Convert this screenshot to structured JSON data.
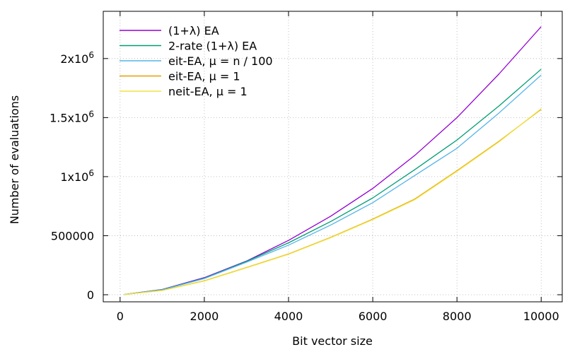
{
  "chart_data": {
    "type": "line",
    "xlabel": "Bit vector size",
    "ylabel": "Number of evaluations",
    "xlim": [
      -400,
      10500
    ],
    "ylim": [
      -60000,
      2400000
    ],
    "grid": true,
    "legend_position": "top-left",
    "x_ticks": [
      {
        "value": 0,
        "label": "0"
      },
      {
        "value": 2000,
        "label": "2000"
      },
      {
        "value": 4000,
        "label": "4000"
      },
      {
        "value": 6000,
        "label": "6000"
      },
      {
        "value": 8000,
        "label": "8000"
      },
      {
        "value": 10000,
        "label": "10000"
      }
    ],
    "y_ticks": [
      {
        "value": 0,
        "base": "0",
        "exp": ""
      },
      {
        "value": 500000,
        "base": "500000",
        "exp": ""
      },
      {
        "value": 1000000,
        "base": "1x10",
        "exp": "6"
      },
      {
        "value": 1500000,
        "base": "1.5x10",
        "exp": "6"
      },
      {
        "value": 2000000,
        "base": "2x10",
        "exp": "6"
      }
    ],
    "x": [
      100,
      1000,
      2000,
      3000,
      4000,
      5000,
      6000,
      7000,
      8000,
      9000,
      10000
    ],
    "series": [
      {
        "name": "(1+λ) EA",
        "color": "#9400d3",
        "values": [
          2000,
          45000,
          145000,
          285000,
          460000,
          665000,
          900000,
          1180000,
          1500000,
          1870000,
          2270000
        ]
      },
      {
        "name": "2-rate (1+λ) EA",
        "color": "#009e73",
        "values": [
          2000,
          43000,
          140000,
          282000,
          440000,
          620000,
          820000,
          1060000,
          1310000,
          1600000,
          1910000
        ]
      },
      {
        "name": "eit-EA, μ = n / 100",
        "color": "#56b4e9",
        "values": [
          2000,
          42000,
          137000,
          275000,
          420000,
          590000,
          780000,
          1010000,
          1240000,
          1540000,
          1860000
        ]
      },
      {
        "name": "eit-EA, μ = 1",
        "color": "#e69f00",
        "values": [
          2000,
          37000,
          118000,
          230000,
          345000,
          485000,
          640000,
          810000,
          1050000,
          1300000,
          1570000
        ]
      },
      {
        "name": "neit-EA, μ = 1",
        "color": "#f0e442",
        "values": [
          2000,
          36000,
          116000,
          228000,
          342000,
          482000,
          636000,
          805000,
          1045000,
          1295000,
          1575000
        ]
      }
    ]
  }
}
